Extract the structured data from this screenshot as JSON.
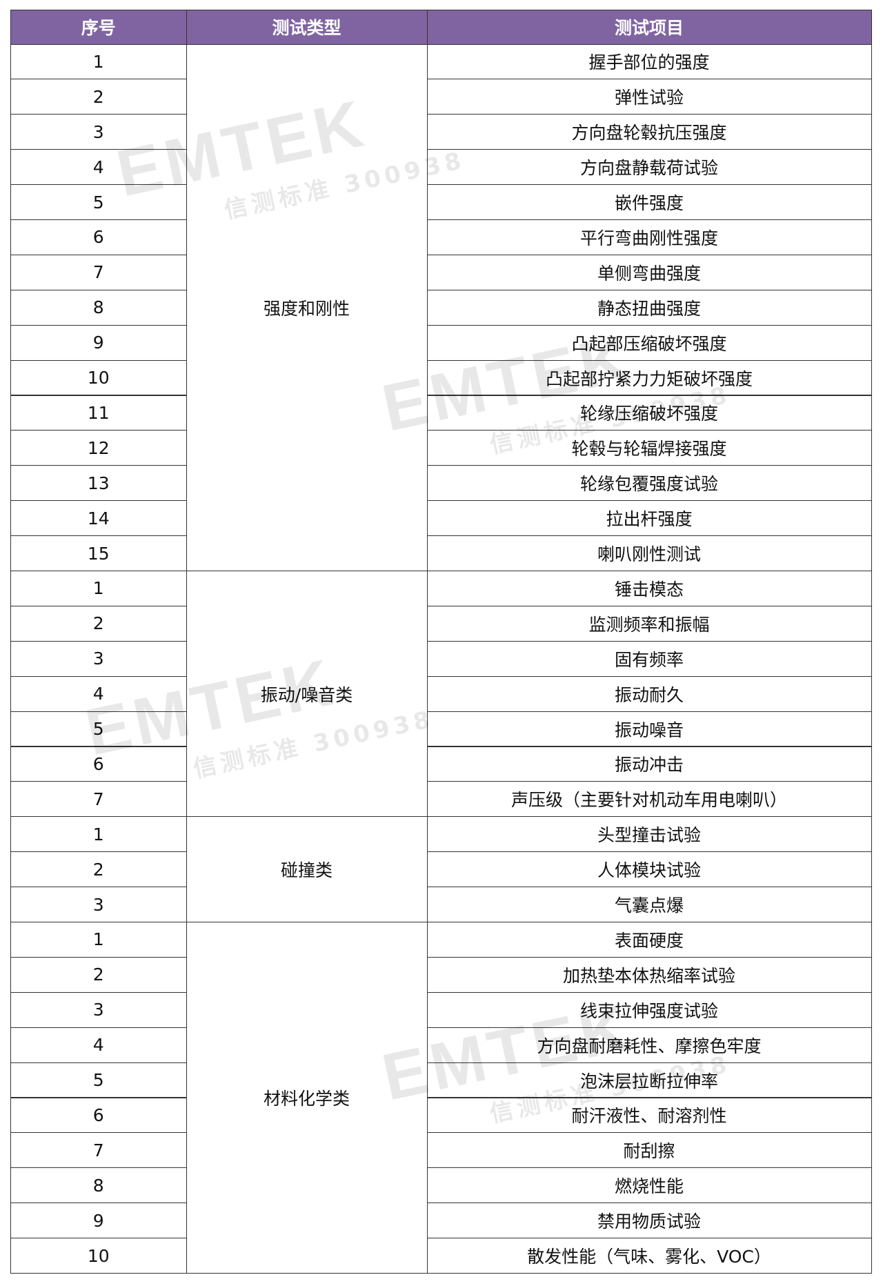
{
  "header": [
    "序号",
    "测试类型",
    "测试项目"
  ],
  "groups": [
    {
      "type": "强度和刚性",
      "items": [
        {
          "no": 1,
          "item": "握手部位的强度"
        },
        {
          "no": 2,
          "item": "弹性试验"
        },
        {
          "no": 3,
          "item": "方向盘轮毂抗压强度"
        },
        {
          "no": 4,
          "item": "方向盘静载荷试验"
        },
        {
          "no": 5,
          "item": "嵌件强度"
        },
        {
          "no": 6,
          "item": "平行弯曲刚性强度"
        },
        {
          "no": 7,
          "item": "单侧弯曲强度"
        },
        {
          "no": 8,
          "item": "静态扭曲强度"
        },
        {
          "no": 9,
          "item": "凸起部压缩破坏强度"
        },
        {
          "no": 10,
          "item": "凸起部拧紧力力矩破坏强度"
        },
        {
          "no": 11,
          "item": "轮缘压缩破坏强度"
        },
        {
          "no": 12,
          "item": "轮毂与轮辐焊接强度"
        },
        {
          "no": 13,
          "item": "轮缘包覆强度试验"
        },
        {
          "no": 14,
          "item": "拉出杆强度"
        },
        {
          "no": 15,
          "item": "喇叭刚性测试"
        }
      ]
    },
    {
      "type": "振动/噪音类",
      "items": [
        {
          "no": 1,
          "item": "锤击模态"
        },
        {
          "no": 2,
          "item": "监测频率和振幅"
        },
        {
          "no": 3,
          "item": "固有频率"
        },
        {
          "no": 4,
          "item": "振动耐久"
        },
        {
          "no": 5,
          "item": "振动噪音"
        },
        {
          "no": 6,
          "item": "振动冲击"
        },
        {
          "no": 7,
          "item": "声压级（主要针对机动车用电喇叭）"
        }
      ]
    },
    {
      "type": "碰撞类",
      "items": [
        {
          "no": 1,
          "item": "头型撞击试验"
        },
        {
          "no": 2,
          "item": "人体模块试验"
        },
        {
          "no": 3,
          "item": "气囊点爆"
        }
      ]
    },
    {
      "type": "材料化学类",
      "items": [
        {
          "no": 1,
          "item": "表面硬度"
        },
        {
          "no": 2,
          "item": "加热垫本体热缩率试验"
        },
        {
          "no": 3,
          "item": "线束拉伸强度试验"
        },
        {
          "no": 4,
          "item": "方向盘耐磨耗性、摩擦色牢度"
        },
        {
          "no": 5,
          "item": "泡沫层拉断拉伸率"
        },
        {
          "no": 6,
          "item": "耐汗液性、耐溶剂性"
        },
        {
          "no": 7,
          "item": "耐刮擦"
        },
        {
          "no": 8,
          "item": "燃烧性能"
        },
        {
          "no": 9,
          "item": "禁用物质试验"
        },
        {
          "no": 10,
          "item": "散发性能（气味、雾化、VOC）"
        }
      ]
    }
  ],
  "watermark": {
    "brand": "EMTEK",
    "sub": "信测标准 300938"
  }
}
